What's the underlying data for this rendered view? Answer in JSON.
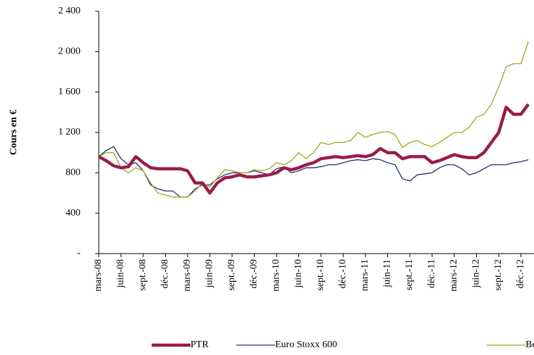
{
  "chart_data": {
    "type": "line",
    "y_label": "Cours en €",
    "categories": [
      "mars-08",
      null,
      null,
      "juin-08",
      null,
      null,
      "sept.-08",
      null,
      null,
      "déc.-08",
      null,
      null,
      "mars-09",
      null,
      null,
      "juin-09",
      null,
      null,
      "sept.-09",
      null,
      null,
      "déc.-09",
      null,
      null,
      "mars-10",
      null,
      null,
      "juin-10",
      null,
      null,
      "sept.-10",
      null,
      null,
      "déc.-10",
      null,
      null,
      "mars-11",
      null,
      null,
      "juin-11",
      null,
      null,
      "sept.-11",
      null,
      null,
      "déc.-11",
      null,
      null,
      "mars-12",
      null,
      null,
      "juin-12",
      null,
      null,
      "sept.-12",
      null,
      null,
      "déc.-12",
      null
    ],
    "series": [
      {
        "name": "PTR",
        "color": "#9b1b4b",
        "width": 4.5,
        "values": [
          960,
          920,
          870,
          850,
          860,
          960,
          900,
          850,
          840,
          840,
          840,
          840,
          820,
          700,
          700,
          600,
          700,
          750,
          760,
          780,
          760,
          760,
          770,
          780,
          800,
          850,
          830,
          850,
          880,
          900,
          940,
          950,
          960,
          950,
          960,
          970,
          960,
          980,
          1040,
          1000,
          1000,
          940,
          960,
          960,
          960,
          900,
          920,
          950,
          980,
          960,
          950,
          950,
          1000,
          1100,
          1200,
          1450,
          1380,
          1380,
          1480
        ]
      },
      {
        "name": "Euro Stoxx 600",
        "color": "#1f2f6b",
        "width": 1.3,
        "values": [
          960,
          1020,
          1060,
          940,
          880,
          900,
          820,
          680,
          640,
          620,
          620,
          560,
          560,
          640,
          680,
          680,
          740,
          780,
          800,
          800,
          800,
          820,
          800,
          780,
          840,
          860,
          800,
          820,
          850,
          850,
          860,
          880,
          880,
          900,
          920,
          930,
          920,
          940,
          930,
          900,
          880,
          740,
          720,
          780,
          790,
          800,
          850,
          880,
          880,
          840,
          780,
          800,
          840,
          880,
          880,
          880,
          900,
          910,
          930
        ]
      },
      {
        "name": "Bolloré",
        "color": "#a6a21d",
        "width": 1.3,
        "values": [
          960,
          1000,
          1000,
          850,
          800,
          850,
          820,
          700,
          600,
          580,
          560,
          560,
          560,
          620,
          700,
          660,
          750,
          830,
          820,
          800,
          800,
          830,
          820,
          840,
          900,
          880,
          920,
          1000,
          940,
          1000,
          1100,
          1080,
          1100,
          1100,
          1120,
          1200,
          1150,
          1180,
          1200,
          1210,
          1180,
          1050,
          1100,
          1120,
          1080,
          1060,
          1100,
          1150,
          1200,
          1200,
          1250,
          1350,
          1380,
          1480,
          1650,
          1850,
          1880,
          1880,
          2100
        ]
      }
    ],
    "ylim": [
      0,
      2400
    ],
    "yticks": [
      {
        "value": 0,
        "label": "-"
      },
      400,
      800,
      {
        "value": 1200,
        "label": "1 200"
      },
      {
        "value": 1600,
        "label": "1 600"
      },
      {
        "value": 2000,
        "label": "2 000"
      },
      {
        "value": 2400,
        "label": "2 400"
      }
    ],
    "grid": false
  }
}
